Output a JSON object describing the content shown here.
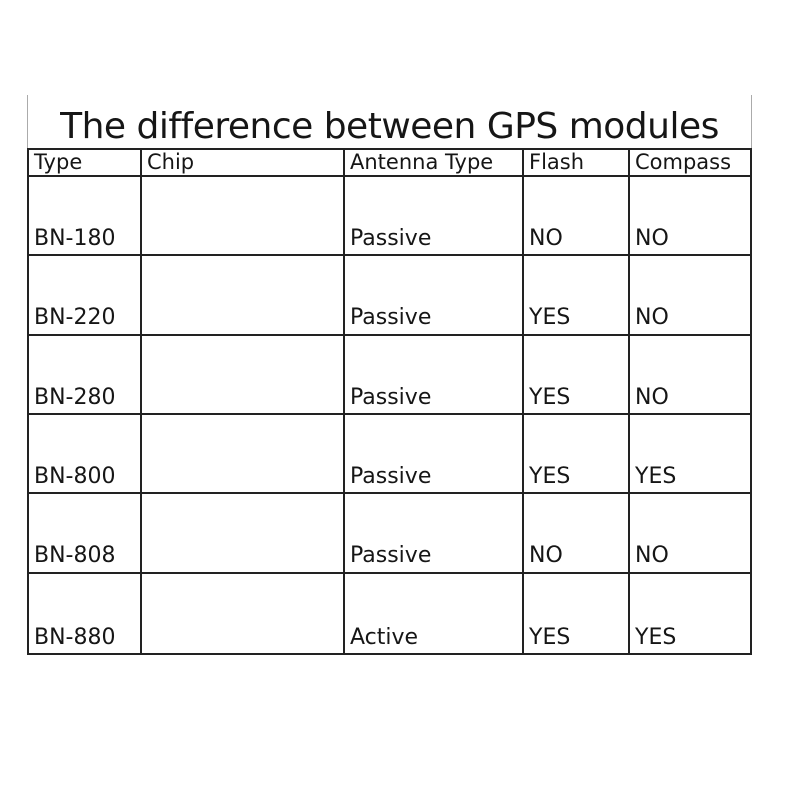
{
  "title": "The difference between GPS modules",
  "chart_data": {
    "type": "table",
    "title": "The difference between GPS modules",
    "columns": [
      "Type",
      "Chip",
      "Antenna Type",
      "Flash",
      "Compass"
    ],
    "rows": [
      [
        "BN-180",
        "",
        "Passive",
        "NO",
        "NO"
      ],
      [
        "BN-220",
        "",
        "Passive",
        "YES",
        "NO"
      ],
      [
        "BN-280",
        "",
        "Passive",
        "YES",
        "NO"
      ],
      [
        "BN-800",
        "",
        "Passive",
        "YES",
        "YES"
      ],
      [
        "BN-808",
        "",
        "Passive",
        "NO",
        "NO"
      ],
      [
        "BN-880",
        "",
        "Active",
        "YES",
        "YES"
      ]
    ],
    "layout": {
      "grid": "on",
      "empty_columns": [
        "Chip"
      ]
    }
  },
  "colors": {
    "background": "#ffffff",
    "text": "#161616",
    "table_border": "#222222",
    "title_box_border": "#ababab"
  }
}
